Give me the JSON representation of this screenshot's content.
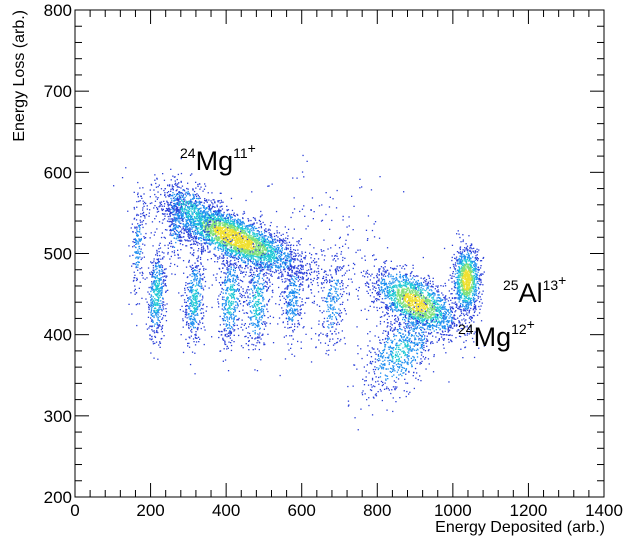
{
  "chart_data": {
    "type": "heatmap",
    "xlabel": "Energy Deposited (arb.)",
    "ylabel": "Energy Loss (arb.)",
    "xlim": [
      0,
      1400
    ],
    "ylim": [
      200,
      800
    ],
    "x_ticks": [
      "0",
      "200",
      "400",
      "600",
      "800",
      "1000",
      "1200",
      "1400"
    ],
    "y_ticks": [
      "200",
      "300",
      "400",
      "500",
      "600",
      "700",
      "800"
    ],
    "grid": false,
    "colormap": [
      "#2a3fd9",
      "#1f8ff0",
      "#22c9d6",
      "#7fe07a",
      "#f0e030"
    ],
    "clusters": [
      {
        "x": 420,
        "y": 520,
        "sx": 85,
        "sy": 22,
        "rho": -0.75,
        "n": 3200,
        "peak": 1.0
      },
      {
        "x": 300,
        "y": 555,
        "sx": 40,
        "sy": 18,
        "rho": -0.4,
        "n": 500,
        "peak": 0.5
      },
      {
        "x": 215,
        "y": 450,
        "sx": 12,
        "sy": 28,
        "rho": 0.2,
        "n": 450,
        "peak": 0.55
      },
      {
        "x": 165,
        "y": 510,
        "sx": 10,
        "sy": 30,
        "rho": 0.3,
        "n": 180,
        "peak": 0.3
      },
      {
        "x": 315,
        "y": 445,
        "sx": 14,
        "sy": 28,
        "rho": 0.2,
        "n": 420,
        "peak": 0.5
      },
      {
        "x": 265,
        "y": 530,
        "sx": 12,
        "sy": 25,
        "rho": 0.3,
        "n": 160,
        "peak": 0.3
      },
      {
        "x": 410,
        "y": 445,
        "sx": 16,
        "sy": 30,
        "rho": 0.2,
        "n": 420,
        "peak": 0.5
      },
      {
        "x": 480,
        "y": 440,
        "sx": 16,
        "sy": 30,
        "rho": 0.2,
        "n": 360,
        "peak": 0.5
      },
      {
        "x": 575,
        "y": 445,
        "sx": 15,
        "sy": 25,
        "rho": 0.2,
        "n": 280,
        "peak": 0.4
      },
      {
        "x": 680,
        "y": 440,
        "sx": 20,
        "sy": 30,
        "rho": 0.4,
        "n": 250,
        "peak": 0.35
      },
      {
        "x": 900,
        "y": 440,
        "sx": 55,
        "sy": 20,
        "rho": -0.55,
        "n": 1800,
        "peak": 0.95
      },
      {
        "x": 860,
        "y": 380,
        "sx": 50,
        "sy": 28,
        "rho": 0.5,
        "n": 700,
        "peak": 0.45
      },
      {
        "x": 1035,
        "y": 468,
        "sx": 18,
        "sy": 20,
        "rho": 0.0,
        "n": 1000,
        "peak": 1.0
      },
      {
        "x": 620,
        "y": 490,
        "sx": 100,
        "sy": 50,
        "rho": 0.0,
        "n": 250,
        "peak": 0.1
      }
    ],
    "annotations": [
      {
        "mass": "24",
        "element": "Mg",
        "charge": "11",
        "sign": "+"
      },
      {
        "mass": "25",
        "element": "Al",
        "charge": "13",
        "sign": "+"
      },
      {
        "mass": "24",
        "element": "Mg",
        "charge": "12",
        "sign": "+"
      }
    ]
  }
}
